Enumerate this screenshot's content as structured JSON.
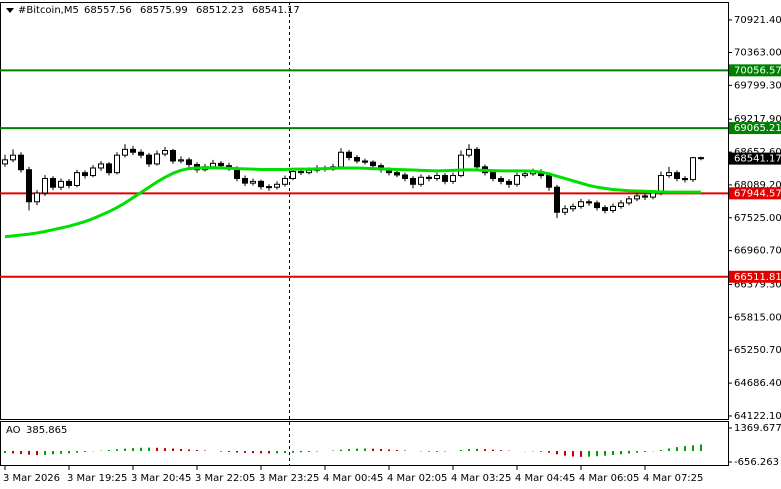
{
  "chart_data": {
    "type": "candlestick",
    "symbol": "#Bitcoin,M5",
    "up_color": "#ffffff",
    "down_color": "#000000",
    "outline_color": "#000000",
    "categories": [
      "3 Mar 2026",
      null,
      null,
      null,
      null,
      null,
      null,
      null,
      "3 Mar 19:25",
      null,
      null,
      null,
      null,
      null,
      null,
      null,
      "3 Mar 20:45",
      null,
      null,
      null,
      null,
      null,
      null,
      null,
      "3 Mar 22:05",
      null,
      null,
      null,
      null,
      null,
      null,
      null,
      "3 Mar 23:25",
      null,
      null,
      null,
      null,
      null,
      null,
      null,
      "4 Mar 00:45",
      null,
      null,
      null,
      null,
      null,
      null,
      null,
      "4 Mar 02:05",
      null,
      null,
      null,
      null,
      null,
      null,
      null,
      "4 Mar 03:25",
      null,
      null,
      null,
      null,
      null,
      null,
      null,
      "4 Mar 04:45",
      null,
      null,
      null,
      null,
      null,
      null,
      null,
      "4 Mar 06:05",
      null,
      null,
      null,
      null,
      null,
      null,
      null,
      "4 Mar 07:25",
      null,
      null,
      null,
      null,
      null,
      null,
      null
    ],
    "ohlc": [
      [
        68450,
        68610,
        68400,
        68520
      ],
      [
        68520,
        68700,
        68480,
        68600
      ],
      [
        68600,
        68650,
        68300,
        68350
      ],
      [
        68350,
        68400,
        67650,
        67800
      ],
      [
        67800,
        68000,
        67740,
        67950
      ],
      [
        67950,
        68260,
        67900,
        68200
      ],
      [
        68200,
        68240,
        68000,
        68050
      ],
      [
        68050,
        68200,
        68000,
        68150
      ],
      [
        68150,
        68190,
        68030,
        68080
      ],
      [
        68080,
        68350,
        68050,
        68300
      ],
      [
        68300,
        68340,
        68200,
        68250
      ],
      [
        68250,
        68430,
        68220,
        68380
      ],
      [
        68380,
        68500,
        68330,
        68450
      ],
      [
        68450,
        68480,
        68250,
        68300
      ],
      [
        68300,
        68650,
        68270,
        68600
      ],
      [
        68600,
        68790,
        68560,
        68700
      ],
      [
        68700,
        68760,
        68600,
        68650
      ],
      [
        68650,
        68700,
        68550,
        68600
      ],
      [
        68600,
        68640,
        68400,
        68450
      ],
      [
        68450,
        68680,
        68420,
        68620
      ],
      [
        68620,
        68740,
        68580,
        68680
      ],
      [
        68680,
        68710,
        68450,
        68500
      ],
      [
        68500,
        68580,
        68460,
        68520
      ],
      [
        68520,
        68560,
        68390,
        68440
      ],
      [
        68440,
        68480,
        68300,
        68350
      ],
      [
        68350,
        68450,
        68320,
        68400
      ],
      [
        68400,
        68520,
        68370,
        68460
      ],
      [
        68460,
        68500,
        68380,
        68420
      ],
      [
        68420,
        68470,
        68330,
        68380
      ],
      [
        68380,
        68410,
        68150,
        68200
      ],
      [
        68200,
        68250,
        68070,
        68120
      ],
      [
        68120,
        68200,
        68080,
        68150
      ],
      [
        68150,
        68180,
        68010,
        68060
      ],
      [
        68060,
        68100,
        67990,
        68050
      ],
      [
        68050,
        68150,
        68010,
        68100
      ],
      [
        68100,
        68250,
        68060,
        68200
      ],
      [
        68200,
        68370,
        68170,
        68320
      ],
      [
        68320,
        68360,
        68260,
        68300
      ],
      [
        68300,
        68390,
        68270,
        68340
      ],
      [
        68340,
        68430,
        68300,
        68380
      ],
      [
        68380,
        68420,
        68320,
        68360
      ],
      [
        68360,
        68450,
        68330,
        68400
      ],
      [
        68400,
        68720,
        68380,
        68650
      ],
      [
        68650,
        68690,
        68510,
        68560
      ],
      [
        68560,
        68600,
        68460,
        68500
      ],
      [
        68500,
        68540,
        68440,
        68480
      ],
      [
        68480,
        68510,
        68380,
        68420
      ],
      [
        68420,
        68460,
        68300,
        68350
      ],
      [
        68350,
        68390,
        68250,
        68300
      ],
      [
        68300,
        68340,
        68220,
        68260
      ],
      [
        68260,
        68300,
        68150,
        68200
      ],
      [
        68200,
        68240,
        68030,
        68100
      ],
      [
        68100,
        68270,
        68060,
        68220
      ],
      [
        68220,
        68260,
        68150,
        68200
      ],
      [
        68200,
        68300,
        68160,
        68250
      ],
      [
        68250,
        68290,
        68100,
        68150
      ],
      [
        68150,
        68300,
        68110,
        68250
      ],
      [
        68250,
        68680,
        68220,
        68600
      ],
      [
        68600,
        68790,
        68560,
        68700
      ],
      [
        68700,
        68740,
        68350,
        68400
      ],
      [
        68400,
        68440,
        68250,
        68300
      ],
      [
        68300,
        68340,
        68150,
        68200
      ],
      [
        68200,
        68240,
        68100,
        68150
      ],
      [
        68150,
        68190,
        68040,
        68100
      ],
      [
        68100,
        68300,
        68060,
        68250
      ],
      [
        68250,
        68330,
        68210,
        68280
      ],
      [
        68280,
        68370,
        68240,
        68320
      ],
      [
        68320,
        68360,
        68200,
        68250
      ],
      [
        68250,
        68290,
        67990,
        68050
      ],
      [
        68050,
        68090,
        67520,
        67620
      ],
      [
        67620,
        67740,
        67570,
        67680
      ],
      [
        67680,
        67770,
        67630,
        67720
      ],
      [
        67720,
        67850,
        67680,
        67800
      ],
      [
        67800,
        67840,
        67730,
        67780
      ],
      [
        67780,
        67820,
        67650,
        67700
      ],
      [
        67700,
        67740,
        67600,
        67650
      ],
      [
        67650,
        67770,
        67610,
        67720
      ],
      [
        67720,
        67830,
        67680,
        67780
      ],
      [
        67780,
        67900,
        67740,
        67850
      ],
      [
        67850,
        67950,
        67810,
        67900
      ],
      [
        67900,
        67940,
        67830,
        67880
      ],
      [
        67880,
        68000,
        67840,
        67950
      ],
      [
        67950,
        68320,
        67910,
        68250
      ],
      [
        68250,
        68400,
        68210,
        68300
      ],
      [
        68300,
        68340,
        68150,
        68200
      ],
      [
        68200,
        68240,
        68130,
        68180
      ],
      [
        68180,
        68570,
        68140,
        68557.56
      ],
      [
        68557.56,
        68575.99,
        68512.23,
        68541.17
      ]
    ],
    "ma": {
      "color": "#00e000",
      "values": [
        67200,
        67215,
        67230,
        67245,
        67265,
        67290,
        67320,
        67350,
        67380,
        67420,
        67460,
        67510,
        67570,
        67630,
        67700,
        67780,
        67870,
        67960,
        68050,
        68140,
        68220,
        68290,
        68340,
        68370,
        68380,
        68385,
        68385,
        68380,
        68375,
        68370,
        68365,
        68360,
        68355,
        68355,
        68355,
        68355,
        68360,
        68360,
        68360,
        68365,
        68370,
        68375,
        68380,
        68380,
        68380,
        68375,
        68370,
        68365,
        68360,
        68355,
        68350,
        68345,
        68340,
        68335,
        68330,
        68335,
        68340,
        68345,
        68350,
        68345,
        68340,
        68335,
        68330,
        68330,
        68330,
        68330,
        68325,
        68310,
        68280,
        68240,
        68200,
        68160,
        68120,
        68080,
        68050,
        68030,
        68010,
        68000,
        67990,
        67985,
        67980,
        67975,
        67970,
        67965,
        67965,
        67965,
        67966,
        67966
      ]
    },
    "levels": [
      {
        "value": 70056.57,
        "color": "#008000"
      },
      {
        "value": 69065.21,
        "color": "#008000"
      },
      {
        "value": 67944.57,
        "color": "#e00000"
      },
      {
        "value": 66511.81,
        "color": "#e00000"
      }
    ],
    "ylim": [
      64070,
      71230
    ],
    "yticks": [
      {
        "value": 70921.4,
        "label": "70921.40"
      },
      {
        "value": 70363,
        "label": "70363.00"
      },
      {
        "value": 69799.3,
        "label": "69799.30"
      },
      {
        "value": 69217.9,
        "label": "69217.90"
      },
      {
        "value": 68652.6,
        "label": "68652.60"
      },
      {
        "value": 68089.2,
        "label": "68089.20"
      },
      {
        "value": 67525,
        "label": "67525.00"
      },
      {
        "value": 66960.7,
        "label": "66960.70"
      },
      {
        "value": 66379.3,
        "label": "66379.30"
      },
      {
        "value": 65815,
        "label": "65815.00"
      },
      {
        "value": 65250.7,
        "label": "65250.70"
      },
      {
        "value": 64686.4,
        "label": "64686.40"
      },
      {
        "value": 64122.1,
        "label": "64122.10"
      }
    ],
    "indicator": {
      "name": "AO",
      "up_color": "#00a000",
      "down_color": "#c00000",
      "values": [
        -120,
        -150,
        -180,
        -220,
        -250,
        -230,
        -200,
        -170,
        -140,
        -100,
        -60,
        -20,
        20,
        60,
        100,
        140,
        170,
        190,
        200,
        190,
        170,
        150,
        120,
        90,
        60,
        30,
        0,
        -30,
        -60,
        -90,
        -110,
        -130,
        -140,
        -150,
        -140,
        -120,
        -100,
        -80,
        -60,
        -30,
        0,
        30,
        80,
        120,
        140,
        150,
        140,
        120,
        90,
        60,
        30,
        0,
        -20,
        -30,
        -40,
        -30,
        0,
        60,
        120,
        130,
        110,
        80,
        50,
        20,
        0,
        -10,
        -20,
        -40,
        -100,
        -200,
        -280,
        -330,
        -350,
        -340,
        -310,
        -280,
        -240,
        -200,
        -150,
        -100,
        -60,
        -20,
        60,
        150,
        230,
        290,
        340,
        385.865
      ],
      "ylim": [
        -835,
        1787
      ],
      "yticks": [
        1369.677,
        -656.263
      ]
    }
  }
}
